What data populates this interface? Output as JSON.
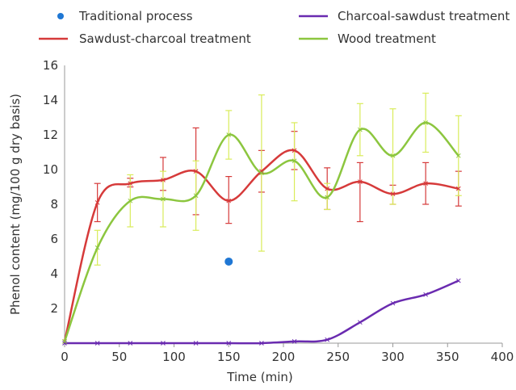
{
  "chart_data": {
    "type": "line",
    "title": "",
    "xlabel": "Time (min)",
    "ylabel": "Phenol content (mg/100 g dry basis)",
    "xlim": [
      0,
      400
    ],
    "ylim": [
      0,
      16
    ],
    "xticks": [
      "0",
      "50",
      "100",
      "150",
      "200",
      "250",
      "300",
      "350",
      "400"
    ],
    "yticks": [
      "2",
      "4",
      "6",
      "8",
      "10",
      "12",
      "14",
      "16"
    ],
    "grid": "none",
    "legend_position": "top",
    "series": [
      {
        "name": "Traditional process",
        "kind": "scatter",
        "color": "#1f77d4",
        "x": [
          150
        ],
        "y": [
          4.7
        ]
      },
      {
        "name": "Sawdust-charcoal treatment",
        "kind": "line",
        "color": "#d63a3a",
        "x": [
          0,
          30,
          60,
          90,
          120,
          150,
          180,
          210,
          240,
          270,
          300,
          330,
          360
        ],
        "y": [
          0.1,
          8.1,
          9.2,
          9.4,
          9.9,
          8.2,
          9.9,
          11.1,
          8.9,
          9.3,
          8.6,
          9.2,
          8.9
        ],
        "err_low": [
          0,
          7.0,
          9.0,
          8.8,
          7.4,
          6.9,
          8.7,
          10.0,
          7.7,
          7.0,
          8.0,
          8.0,
          7.9
        ],
        "err_high": [
          0,
          9.2,
          9.5,
          10.7,
          12.4,
          9.6,
          11.1,
          12.2,
          10.1,
          10.4,
          9.1,
          10.4,
          9.9
        ]
      },
      {
        "name": "Charcoal-sawdust treatment",
        "kind": "line",
        "color": "#6a2bb0",
        "x": [
          0,
          30,
          60,
          90,
          120,
          150,
          180,
          210,
          240,
          270,
          300,
          330,
          360
        ],
        "y": [
          0.0,
          0.0,
          0.0,
          0.0,
          0.0,
          0.0,
          0.0,
          0.1,
          0.2,
          1.2,
          2.3,
          2.8,
          3.6
        ]
      },
      {
        "name": "Wood treatment",
        "kind": "line",
        "color": "#8cc63f",
        "errColor": "#d9ec5a",
        "x": [
          0,
          30,
          60,
          90,
          120,
          150,
          180,
          210,
          240,
          270,
          300,
          330,
          360
        ],
        "y": [
          0.1,
          5.5,
          8.2,
          8.3,
          8.5,
          12.0,
          9.8,
          10.5,
          8.4,
          12.3,
          10.8,
          12.7,
          10.8
        ],
        "err_low": [
          0,
          4.5,
          6.7,
          6.7,
          6.5,
          10.6,
          5.3,
          8.2,
          7.7,
          10.8,
          8.0,
          11.0,
          8.5
        ],
        "err_high": [
          0,
          6.5,
          9.7,
          9.9,
          10.5,
          13.4,
          14.3,
          12.7,
          9.2,
          13.8,
          13.5,
          14.4,
          13.1
        ]
      }
    ]
  }
}
